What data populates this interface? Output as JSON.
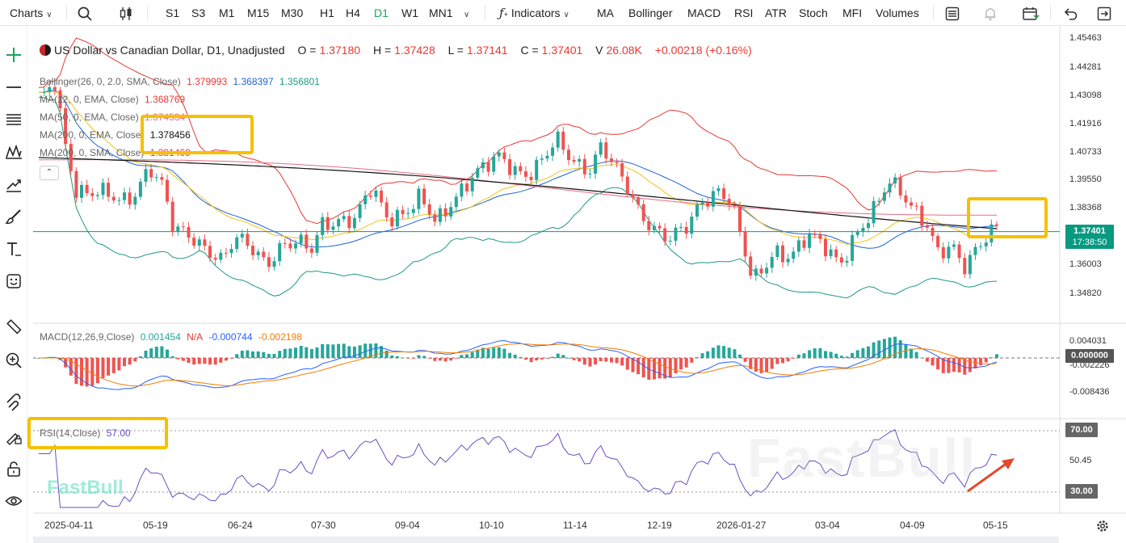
{
  "toolbar": {
    "charts_label": "Charts",
    "timeframes": [
      "S1",
      "S3",
      "M1",
      "M15",
      "M30",
      "H1",
      "H4",
      "D1",
      "W1",
      "MN1"
    ],
    "active_timeframe": "D1",
    "indicators_label": "Indicators",
    "indicator_shortcuts": [
      "MA",
      "Bollinger",
      "MACD",
      "RSI",
      "ATR",
      "Stoch",
      "MFI",
      "Volumes"
    ],
    "icons": [
      "search-icon",
      "candlestick-icon",
      "function-icon",
      "layout-icon",
      "alert-icon",
      "calendar-icon",
      "undo-icon",
      "exit-icon"
    ]
  },
  "left_tools": [
    "crosshair-icon",
    "line-icon",
    "multi-line-icon",
    "pattern-icon",
    "trend-icon",
    "brush-icon",
    "text-icon",
    "emoji-icon",
    "ruler-icon",
    "zoom-in-icon",
    "magnet-icon",
    "lock-draw-icon",
    "lock-icon",
    "eye-icon"
  ],
  "colors": {
    "up": "#26a69a",
    "down": "#ef5350",
    "boll_upper": "#e53935",
    "boll_mid": "#1e63d6",
    "boll_lower": "#1b9a84",
    "ma12": "#f0c419",
    "ma50": "#e66d82",
    "ma200": "#111111",
    "macd_line": "#2962ff",
    "signal_line": "#f57c00",
    "rsi_line": "#6a4fc2",
    "highlight": "#f5c000",
    "price_badge": "#089981"
  },
  "header": {
    "symbol_title": "US Dollar vs Canadian Dollar, D1, Unadjusted",
    "o_label": "O =",
    "o_value": "1.37180",
    "h_label": "H =",
    "h_value": "1.37428",
    "l_label": "L =",
    "l_value": "1.37141",
    "c_label": "C =",
    "c_value": "1.37401",
    "v_label": "V",
    "v_value": "26.08K",
    "change": "+0.00218 (+0.16%)"
  },
  "indicator_legends": {
    "bollinger_label": "Bollinger(26, 0, 2.0, SMA, Close)",
    "bollinger_values": [
      "1.379993",
      "1.368397",
      "1.356801"
    ],
    "ma1_label": "MA(12, 0, EMA, Close)",
    "ma1_value": "1.368769",
    "ma2_label": "MA(50, 0, EMA, Close)",
    "ma2_value": "1.374534",
    "ma3_label": "MA(200, 0, EMA, Close)",
    "ma3_value": "1.378456",
    "ma4_label": "MA(200, 0, SMA, Close)",
    "ma4_value": "1.381469",
    "collapse_icon": "chevron-up-icon"
  },
  "price_axis": {
    "ticks": [
      "1.45463",
      "1.44281",
      "1.43098",
      "1.41916",
      "1.40733",
      "1.39550",
      "1.38368",
      "1.37401",
      "1.36003",
      "1.34820"
    ],
    "current_price": "1.37401",
    "countdown": "17:38:50"
  },
  "macd": {
    "label": "MACD(12,26,9,Close)",
    "values": [
      "0.001454",
      "N/A",
      "-0.000744",
      "-0.002198"
    ],
    "ticks": [
      "0.004031",
      "-0.002226",
      "-0.008436"
    ],
    "zero_badge": "0.000000"
  },
  "rsi": {
    "label": "RSI(14,Close)",
    "value": "57.00",
    "ticks": [
      "70.00",
      "50.45",
      "30.00"
    ]
  },
  "time_axis": [
    "2025-04-11",
    "05-19",
    "06-24",
    "07-30",
    "09-04",
    "10-10",
    "11-14",
    "12-19",
    "2026-01-27",
    "03-04",
    "04-09",
    "05-15"
  ],
  "watermark": "FastBull",
  "settings_icon": "settings-icon"
}
